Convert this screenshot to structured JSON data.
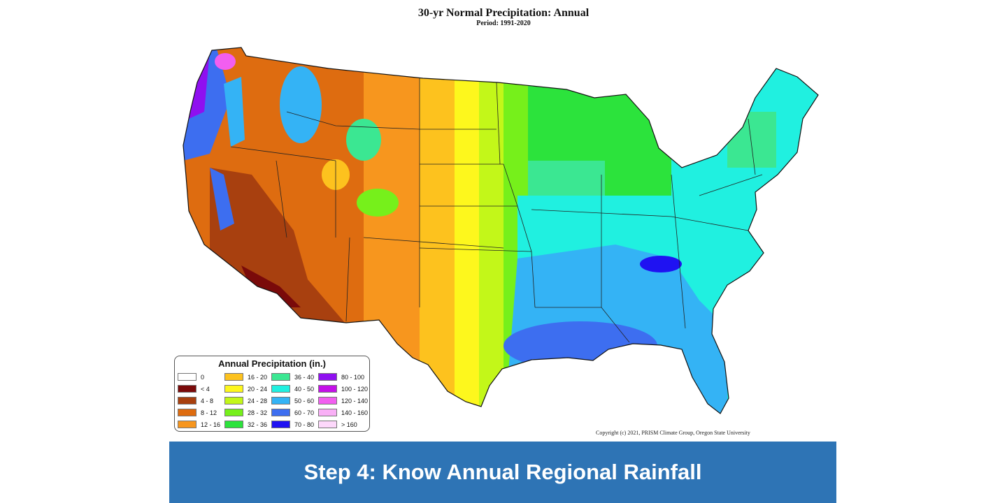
{
  "map": {
    "title": "30-yr Normal Precipitation: Annual",
    "subtitle": "Period: 1991-2020",
    "copyright": "Copyright (c) 2021, PRISM Climate Group, Oregon State University"
  },
  "legend": {
    "title": "Annual Precipitation (in.)",
    "items": [
      {
        "label": "0",
        "color": "#ffffff"
      },
      {
        "label": "< 4",
        "color": "#7a0a0a"
      },
      {
        "label": "4 - 8",
        "color": "#a8400f"
      },
      {
        "label": "8 - 12",
        "color": "#de6c10"
      },
      {
        "label": "12 - 16",
        "color": "#f7961e"
      },
      {
        "label": "16 - 20",
        "color": "#fdc21e"
      },
      {
        "label": "20 - 24",
        "color": "#fdf71d"
      },
      {
        "label": "24 - 28",
        "color": "#c3f719"
      },
      {
        "label": "28 - 32",
        "color": "#76f01b"
      },
      {
        "label": "32 - 36",
        "color": "#2ce33c"
      },
      {
        "label": "36 - 40",
        "color": "#3be792"
      },
      {
        "label": "40 - 50",
        "color": "#20f0e0"
      },
      {
        "label": "50 - 60",
        "color": "#34b3f5"
      },
      {
        "label": "60 - 70",
        "color": "#3d6ef0"
      },
      {
        "label": "70 - 80",
        "color": "#1f12f2"
      },
      {
        "label": "80 - 100",
        "color": "#8f10f0"
      },
      {
        "label": "100 - 120",
        "color": "#c410e8"
      },
      {
        "label": "120 - 140",
        "color": "#f25ef0"
      },
      {
        "label": "140 - 160",
        "color": "#f9b0f6"
      },
      {
        "label": "> 160",
        "color": "#fdd8fb"
      }
    ]
  },
  "banner": {
    "text": "Step 4: Know Annual Regional Rainfall",
    "color": "#2e74b5"
  }
}
